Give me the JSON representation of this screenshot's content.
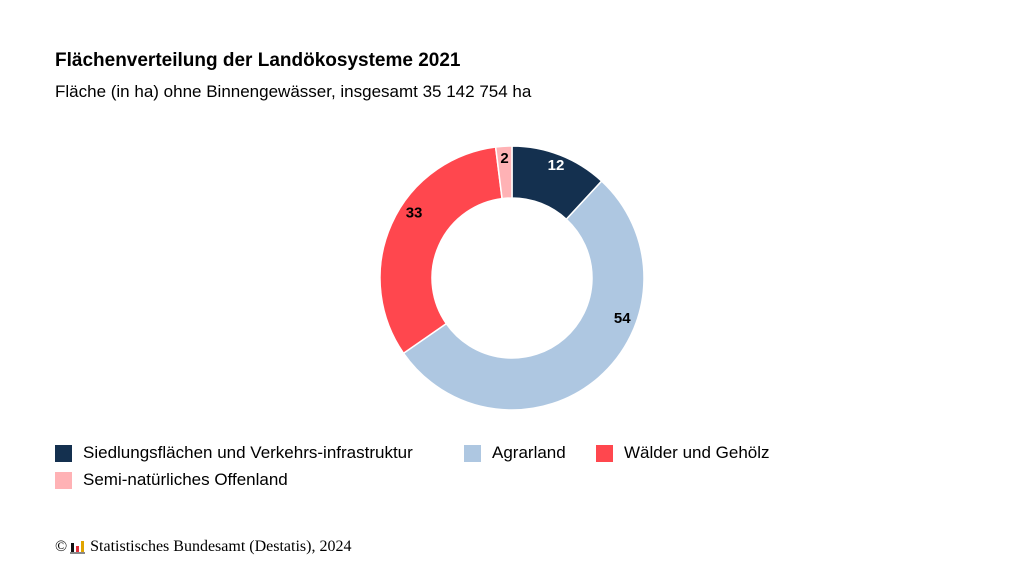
{
  "colors": {
    "settlement": "#14304f",
    "agrar": "#aec7e1",
    "forest": "#ff474e",
    "semi": "#ffb2b5",
    "logo_black": "#111111",
    "logo_red": "#e3303a",
    "logo_gold": "#e0a400"
  },
  "footer": {
    "copyright_symbol": "©",
    "logo_icon": "destatis-logo-icon",
    "source": "Statistisches Bundesamt (Destatis), 2024"
  },
  "chart_data": {
    "type": "pie",
    "style": "donut",
    "title": "Flächenverteilung der Landökosysteme 2021",
    "subtitle": "Fläche (in ha) ohne Binnengewässer, insgesamt 35 142 754 ha",
    "categories": [
      "Siedlungsflächen und Verkehrs-infrastruktur",
      "Agrarland",
      "Wälder und Gehölz",
      "Semi-natürliches Offenland"
    ],
    "values": [
      12,
      54,
      33,
      2
    ],
    "data_labels": [
      "12",
      "54",
      "33",
      "2"
    ],
    "colors": [
      "#14304f",
      "#aec7e1",
      "#ff474e",
      "#ffb2b5"
    ],
    "legend_position": "bottom-left",
    "start_angle": "top, clockwise"
  }
}
